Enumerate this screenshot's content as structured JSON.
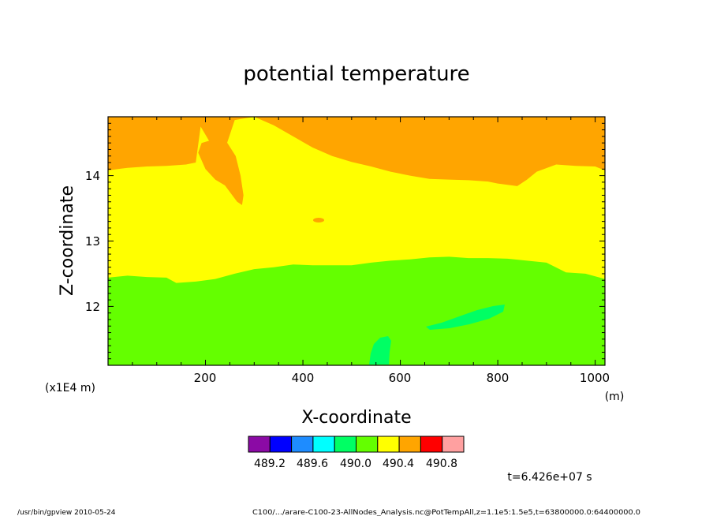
{
  "chart_data": {
    "type": "heatmap",
    "title": "potential temperature",
    "xlabel": "X-coordinate",
    "ylabel": "Z-coordinate",
    "x_unit": "(m)",
    "y_scale_label": "(x1E4 m)",
    "xlim": [
      0,
      1020
    ],
    "ylim": [
      11.1,
      14.9
    ],
    "x_ticks": [
      200,
      400,
      600,
      800,
      1000
    ],
    "y_ticks": [
      12,
      13,
      14
    ],
    "x_tick_labels": [
      "200",
      "400",
      "600",
      "800",
      "1000"
    ],
    "y_tick_labels": [
      "12",
      "13",
      "14"
    ],
    "color_levels": [
      "#8b0aa5",
      "#0000ff",
      "#1e8cff",
      "#00ffff",
      "#00ff64",
      "#64ff00",
      "#ffff00",
      "#ffa500",
      "#ff0000",
      "#ffa0a0"
    ],
    "colorbar_labels": [
      "489.2",
      "489.6",
      "490.0",
      "490.4",
      "490.8"
    ],
    "contour_boundaries": {
      "green_top": [
        [
          0,
          12.44
        ],
        [
          40,
          12.47
        ],
        [
          80,
          12.45
        ],
        [
          120,
          12.44
        ],
        [
          140,
          12.36
        ],
        [
          180,
          12.38
        ],
        [
          220,
          12.42
        ],
        [
          260,
          12.5
        ],
        [
          300,
          12.57
        ],
        [
          340,
          12.6
        ],
        [
          380,
          12.64
        ],
        [
          420,
          12.63
        ],
        [
          460,
          12.63
        ],
        [
          500,
          12.63
        ],
        [
          540,
          12.67
        ],
        [
          580,
          12.7
        ],
        [
          620,
          12.72
        ],
        [
          660,
          12.75
        ],
        [
          700,
          12.76
        ],
        [
          740,
          12.74
        ],
        [
          780,
          12.74
        ],
        [
          820,
          12.73
        ],
        [
          860,
          12.7
        ],
        [
          900,
          12.67
        ],
        [
          940,
          12.52
        ],
        [
          980,
          12.5
        ],
        [
          1020,
          12.42
        ]
      ],
      "orange_bottom": [
        [
          0,
          14.08
        ],
        [
          20,
          14.1
        ],
        [
          40,
          14.12
        ],
        [
          80,
          14.14
        ],
        [
          120,
          14.15
        ],
        [
          160,
          14.17
        ],
        [
          180,
          14.2
        ],
        [
          190,
          14.75
        ],
        [
          210,
          14.5
        ],
        [
          240,
          14.4
        ],
        [
          260,
          14.85
        ],
        [
          300,
          14.9
        ],
        [
          340,
          14.77
        ],
        [
          380,
          14.6
        ],
        [
          420,
          14.43
        ],
        [
          460,
          14.3
        ],
        [
          500,
          14.21
        ],
        [
          540,
          14.14
        ],
        [
          580,
          14.06
        ],
        [
          620,
          14.0
        ],
        [
          660,
          13.95
        ],
        [
          700,
          13.94
        ],
        [
          740,
          13.93
        ],
        [
          780,
          13.91
        ],
        [
          800,
          13.88
        ],
        [
          840,
          13.84
        ],
        [
          860,
          13.94
        ],
        [
          880,
          14.06
        ],
        [
          920,
          14.17
        ],
        [
          960,
          14.15
        ],
        [
          1000,
          14.14
        ],
        [
          1020,
          14.08
        ]
      ],
      "orange_tongue": [
        [
          185,
          14.35
        ],
        [
          200,
          14.1
        ],
        [
          220,
          13.94
        ],
        [
          240,
          13.85
        ],
        [
          255,
          13.7
        ],
        [
          265,
          13.6
        ],
        [
          275,
          13.55
        ],
        [
          278,
          13.7
        ],
        [
          272,
          14.0
        ],
        [
          262,
          14.3
        ],
        [
          245,
          14.5
        ],
        [
          215,
          14.55
        ],
        [
          192,
          14.5
        ]
      ]
    },
    "colors": {
      "cyan_green": "#00ff64",
      "green": "#64ff00",
      "yellow": "#ffff00",
      "orange": "#ffa500"
    },
    "time_label": "t=6.426e+07 s"
  },
  "footer": {
    "left": "/usr/bin/gpview   2010-05-24",
    "right": "C100/.../arare-C100-23-AllNodes_Analysis.nc@PotTempAll,z=1.1e5:1.5e5,t=63800000.0:64400000.0"
  }
}
